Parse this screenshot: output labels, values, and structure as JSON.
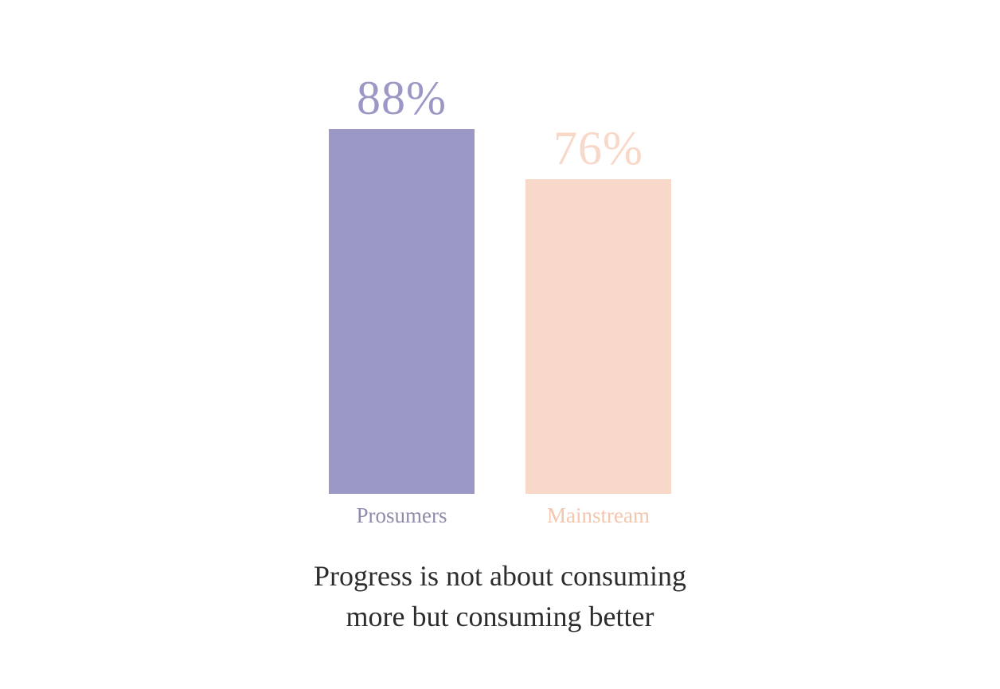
{
  "chart_data": {
    "type": "bar",
    "categories": [
      "Prosumers",
      "Mainstream"
    ],
    "values": [
      88,
      76
    ],
    "value_labels": [
      "88%",
      "76%"
    ],
    "colors": [
      "#9b98c6",
      "#f8d8c8"
    ],
    "category_label_colors": [
      "#8f8cab",
      "#f3c6ae"
    ],
    "title": "Progress is not about consuming more but consuming better",
    "title_lines": [
      "Progress is not about consuming",
      "more but consuming better"
    ],
    "title_color": "#2d2d30",
    "ylim": [
      0,
      100
    ],
    "grid": false,
    "legend": "none",
    "background": "#ffffff"
  }
}
